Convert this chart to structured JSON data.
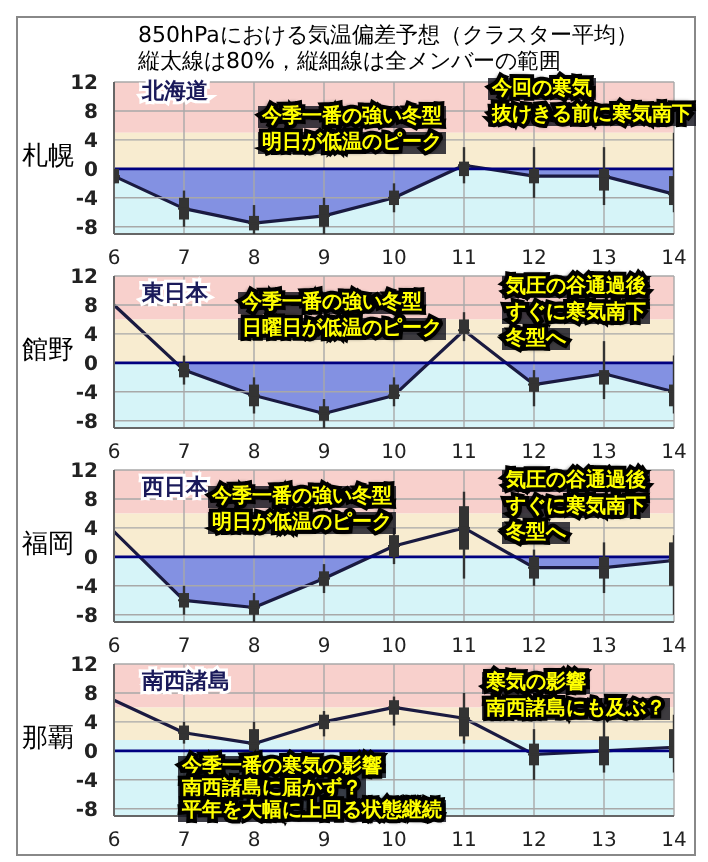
{
  "chart_data": [
    {
      "type": "area",
      "title": "850hPaにおける気温偏差予想（クラスター平均）",
      "subtitle": "縦太線は80%，縦細線は全メンバーの範囲",
      "ylabel": "札幌",
      "x": [
        6,
        7,
        8,
        9,
        10,
        11,
        12,
        13,
        14
      ],
      "xlim": [
        6,
        14
      ],
      "xticks": [
        6,
        7,
        8,
        9,
        10,
        11,
        12,
        13,
        14
      ],
      "ylim": [
        -9,
        12
      ],
      "yticks": [
        -8,
        -4,
        0,
        4,
        8,
        12
      ],
      "grid": true,
      "bands": [
        {
          "axis": "y",
          "from": 5,
          "to": 12,
          "color": "#f8d0cc"
        },
        {
          "axis": "y",
          "from": 0,
          "to": 5,
          "color": "#f8ecd0"
        },
        {
          "axis": "y",
          "from": -9,
          "to": 0,
          "color": "#d6f4f8"
        }
      ],
      "ref_lines": [
        {
          "axis": "y",
          "value": 0,
          "color": "#000080"
        }
      ],
      "annotations": [
        "北海道",
        "今季一番の強い冬型",
        "明日が低温のピーク",
        "今回の寒気",
        "抜けきる前に寒気南下"
      ],
      "series": [
        {
          "color": "#4040d0",
          "values": [
            -1,
            -5.5,
            -7.5,
            -6.5,
            -4,
            0.5,
            -1,
            -1,
            -3.5
          ]
        },
        {
          "type": "box",
          "color": "#333333",
          "boxes": [
            {
              "low": -2,
              "q1": -2,
              "median": -1,
              "q3": 0,
              "high": 0
            },
            {
              "low": -8,
              "q1": -7,
              "median": -5.5,
              "q3": -4,
              "high": -3
            },
            {
              "low": -9,
              "q1": -8.5,
              "median": -7.5,
              "q3": -6.5,
              "high": -5
            },
            {
              "low": -9,
              "q1": -8,
              "median": -6.5,
              "q3": -5,
              "high": -4
            },
            {
              "low": -6,
              "q1": -5,
              "median": -4,
              "q3": -3,
              "high": -2
            },
            {
              "low": -2,
              "q1": -1,
              "median": 0.5,
              "q3": 1,
              "high": 3
            },
            {
              "low": -4,
              "q1": -2,
              "median": -1,
              "q3": 0,
              "high": 3
            },
            {
              "low": -5,
              "q1": -3,
              "median": -1,
              "q3": 0,
              "high": 3
            },
            {
              "low": -6,
              "q1": -5,
              "median": -3.5,
              "q3": -1,
              "high": 5
            }
          ]
        }
      ]
    },
    {
      "type": "area",
      "ylabel": "館野",
      "x": [
        6,
        7,
        8,
        9,
        10,
        11,
        12,
        13,
        14
      ],
      "xlim": [
        6,
        14
      ],
      "xticks": [
        6,
        7,
        8,
        9,
        10,
        11,
        12,
        13,
        14
      ],
      "ylim": [
        -9,
        12
      ],
      "yticks": [
        -8,
        -4,
        0,
        4,
        8,
        12
      ],
      "grid": true,
      "bands": [
        {
          "axis": "y",
          "from": 6,
          "to": 12,
          "color": "#f8d0cc"
        },
        {
          "axis": "y",
          "from": 0,
          "to": 6,
          "color": "#f8ecd0"
        },
        {
          "axis": "y",
          "from": -9,
          "to": 0,
          "color": "#d6f4f8"
        }
      ],
      "ref_lines": [
        {
          "axis": "y",
          "value": 0,
          "color": "#000080"
        }
      ],
      "annotations": [
        "東日本",
        "今季一番の強い冬型",
        "日曜日が低温のピーク",
        "気圧の谷通過後",
        "すぐに寒気南下",
        "冬型へ"
      ],
      "series": [
        {
          "color": "#4040d0",
          "values": [
            8,
            -1,
            -4.5,
            -7,
            -4.5,
            4.5,
            -3,
            -1.5,
            -4
          ]
        },
        {
          "type": "box",
          "color": "#333333",
          "boxes": [
            null,
            {
              "low": -3,
              "q1": -2,
              "median": -1,
              "q3": 0,
              "high": 1
            },
            {
              "low": -7,
              "q1": -6,
              "median": -4.5,
              "q3": -3,
              "high": -2
            },
            {
              "low": -9,
              "q1": -8,
              "median": -7,
              "q3": -6,
              "high": -5
            },
            {
              "low": -6,
              "q1": -5,
              "median": -4.5,
              "q3": -3,
              "high": -2
            },
            {
              "low": 3,
              "q1": 4,
              "median": 4.5,
              "q3": 6,
              "high": 7
            },
            {
              "low": -6,
              "q1": -4,
              "median": -3,
              "q3": -2,
              "high": -1
            },
            {
              "low": -5,
              "q1": -3,
              "median": -1.5,
              "q3": -1,
              "high": 3
            },
            {
              "low": -7,
              "q1": -6,
              "median": -4,
              "q3": -3,
              "high": 1
            }
          ]
        }
      ]
    },
    {
      "type": "area",
      "ylabel": "福岡",
      "x": [
        6,
        7,
        8,
        9,
        10,
        11,
        12,
        13,
        14
      ],
      "xlim": [
        6,
        14
      ],
      "xticks": [
        6,
        7,
        8,
        9,
        10,
        11,
        12,
        13,
        14
      ],
      "ylim": [
        -9,
        12
      ],
      "yticks": [
        -8,
        -4,
        0,
        4,
        8,
        12
      ],
      "grid": true,
      "bands": [
        {
          "axis": "y",
          "from": 6,
          "to": 12,
          "color": "#f8d0cc"
        },
        {
          "axis": "y",
          "from": 0,
          "to": 6,
          "color": "#f8ecd0"
        },
        {
          "axis": "y",
          "from": -9,
          "to": 0,
          "color": "#d6f4f8"
        }
      ],
      "ref_lines": [
        {
          "axis": "y",
          "value": 0,
          "color": "#000080"
        }
      ],
      "annotations": [
        "西日本",
        "今季一番の強い冬型",
        "明日が低温のピーク",
        "気圧の谷通過後",
        "すぐに寒気南下",
        "冬型へ"
      ],
      "series": [
        {
          "color": "#4040d0",
          "values": [
            3.5,
            -6,
            -7,
            -3,
            1.5,
            4,
            -1.5,
            -1.5,
            -0.5
          ]
        },
        {
          "type": "box",
          "color": "#333333",
          "boxes": [
            null,
            {
              "low": -8,
              "q1": -7,
              "median": -6,
              "q3": -5,
              "high": -4
            },
            {
              "low": -9,
              "q1": -8,
              "median": -7,
              "q3": -6,
              "high": -5
            },
            {
              "low": -5,
              "q1": -4,
              "median": -3,
              "q3": -2,
              "high": -1
            },
            {
              "low": -1,
              "q1": 0,
              "median": 1.5,
              "q3": 3,
              "high": 4
            },
            {
              "low": -3,
              "q1": 1,
              "median": 4,
              "q3": 7,
              "high": 9
            },
            {
              "low": -4,
              "q1": -3,
              "median": -1.5,
              "q3": 0,
              "high": 1
            },
            {
              "low": -5,
              "q1": -3,
              "median": -1.5,
              "q3": 0,
              "high": 2
            },
            {
              "low": -8,
              "q1": -4,
              "median": -0.5,
              "q3": 2,
              "high": 3
            }
          ]
        }
      ]
    },
    {
      "type": "area",
      "ylabel": "那覇",
      "x": [
        6,
        7,
        8,
        9,
        10,
        11,
        12,
        13,
        14
      ],
      "xlim": [
        6,
        14
      ],
      "xticks": [
        6,
        7,
        8,
        9,
        10,
        11,
        12,
        13,
        14
      ],
      "ylim": [
        -9,
        12
      ],
      "yticks": [
        -8,
        -4,
        0,
        4,
        8,
        12
      ],
      "grid": true,
      "bands": [
        {
          "axis": "y",
          "from": 6,
          "to": 12,
          "color": "#f8d0cc"
        },
        {
          "axis": "y",
          "from": 1.5,
          "to": 6,
          "color": "#f8ecd0"
        },
        {
          "axis": "y",
          "from": -9,
          "to": 1.5,
          "color": "#d6f4f8"
        }
      ],
      "ref_lines": [
        {
          "axis": "y",
          "value": 0,
          "color": "#000080"
        }
      ],
      "annotations": [
        "南西諸島",
        "今季一番の寒気の影響",
        "南西諸島に届かず？",
        "平年を大幅に上回る状態継続",
        "寒気の影響",
        "南西諸島にも及ぶ？"
      ],
      "series": [
        {
          "color": "#4040d0",
          "values": [
            7,
            2.5,
            1,
            4,
            6,
            4.5,
            -0.5,
            0,
            0.5
          ]
        },
        {
          "type": "box",
          "color": "#333333",
          "boxes": [
            null,
            {
              "low": 1,
              "q1": 1.5,
              "median": 2.5,
              "q3": 3.5,
              "high": 4
            },
            {
              "low": -0.5,
              "q1": 0,
              "median": 1,
              "q3": 3,
              "high": 4
            },
            {
              "low": 2,
              "q1": 3,
              "median": 4,
              "q3": 5,
              "high": 5.5
            },
            {
              "low": 3.5,
              "q1": 5,
              "median": 6,
              "q3": 7,
              "high": 7.5
            },
            {
              "low": 1,
              "q1": 2,
              "median": 4.5,
              "q3": 6,
              "high": 8
            },
            {
              "low": -4,
              "q1": -2,
              "median": -0.5,
              "q3": 1,
              "high": 3
            },
            {
              "low": -3,
              "q1": -2,
              "median": 0,
              "q3": 2,
              "high": 5
            },
            {
              "low": -3,
              "q1": -1,
              "median": 0.5,
              "q3": 3,
              "high": 5
            }
          ]
        }
      ]
    }
  ]
}
